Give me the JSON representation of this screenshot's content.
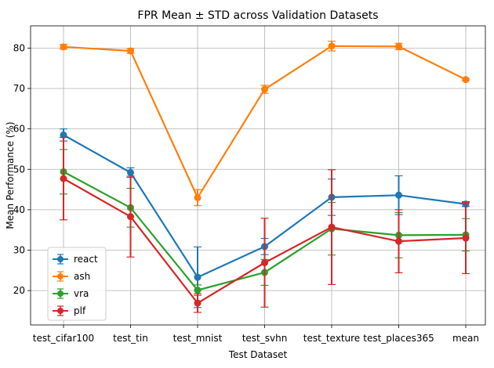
{
  "chart_data": {
    "type": "line",
    "title": "FPR Mean ± STD across Validation Datasets",
    "xlabel": "Test Dataset",
    "ylabel": "Mean Performance (%)",
    "categories": [
      "test_cifar100",
      "test_tin",
      "test_mnist",
      "test_svhn",
      "test_texture",
      "test_places365",
      "mean"
    ],
    "ylim": [
      11.5,
      85.5
    ],
    "yticks": [
      20,
      30,
      40,
      50,
      60,
      70,
      80
    ],
    "grid": true,
    "legend_position": "lower-left",
    "series": [
      {
        "name": "react",
        "color": "#1f77b4",
        "values": [
          58.5,
          49.2,
          23.3,
          30.9,
          43.1,
          43.6,
          41.4
        ],
        "errors": [
          1.5,
          1.2,
          7.5,
          2.0,
          4.5,
          4.8,
          0.6
        ]
      },
      {
        "name": "ash",
        "color": "#ff7f0e",
        "values": [
          80.3,
          79.3,
          43.0,
          69.8,
          80.5,
          80.4,
          72.2
        ],
        "errors": [
          0.6,
          0.6,
          2.0,
          1.0,
          1.2,
          0.8,
          0.2
        ]
      },
      {
        "name": "vra",
        "color": "#2ca02c",
        "values": [
          49.4,
          40.5,
          20.1,
          24.5,
          35.3,
          33.7,
          33.8
        ],
        "errors": [
          5.5,
          4.8,
          1.3,
          3.2,
          6.5,
          5.6,
          4.0
        ]
      },
      {
        "name": "plf",
        "color": "#d62728",
        "values": [
          47.7,
          38.3,
          16.9,
          26.9,
          35.7,
          32.2,
          33.0
        ],
        "errors": [
          10.2,
          10.0,
          2.3,
          11.0,
          14.2,
          7.8,
          8.8
        ]
      }
    ]
  }
}
